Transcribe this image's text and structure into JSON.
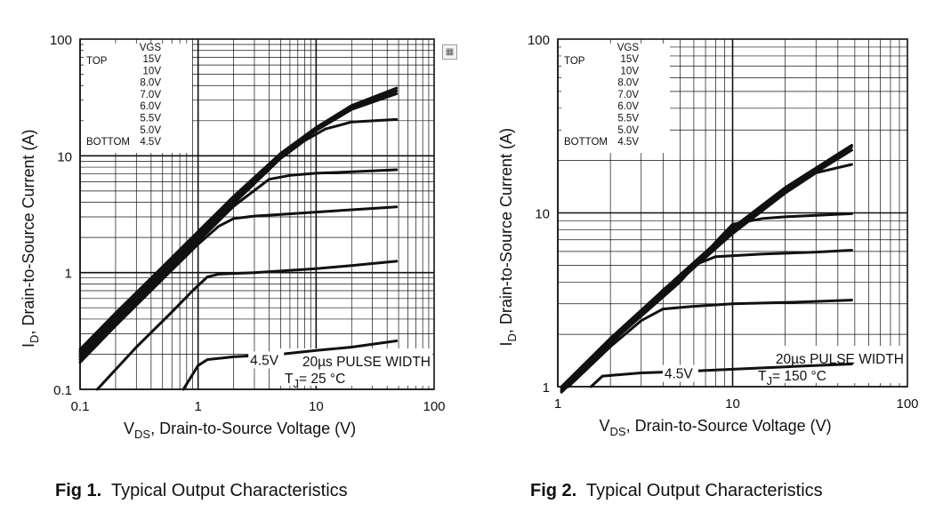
{
  "chart_data": [
    {
      "type": "line",
      "caption_num": "Fig 1.",
      "caption_text": "Typical Output Characteristics",
      "xlabel_main": "V",
      "xlabel_sub": "DS",
      "xlabel_rest": ", Drain-to-Source Voltage (V)",
      "ylabel_main": "I",
      "ylabel_sub": "D",
      "ylabel_rest": ",  Drain-to-Source Current (A)",
      "x_scale": "log",
      "y_scale": "log",
      "xlim": [
        0.1,
        100
      ],
      "ylim": [
        0.1,
        100
      ],
      "x_ticks": [
        "0.1",
        "1",
        "10",
        "100"
      ],
      "y_ticks": [
        "0.1",
        "1",
        "10",
        "100"
      ],
      "grid": true,
      "legend_title": "VGS",
      "legend_top": "TOP",
      "legend_bottom": "BOTTOM",
      "legend_entries": [
        "15V",
        "10V",
        "8.0V",
        "7.0V",
        "6.0V",
        "5.5V",
        "5.0V",
        "4.5V"
      ],
      "annotations": {
        "vgs_label": "4.5V",
        "pulse": "20µs PULSE WIDTH",
        "tj_main": "T",
        "tj_sub": "J",
        "tj_rest": "= 25 °C"
      },
      "series": [
        {
          "name": "15V",
          "x": [
            0.1,
            0.2,
            0.5,
            1,
            2,
            5,
            10,
            20,
            48
          ],
          "y": [
            0.22,
            0.45,
            1.12,
            2.25,
            4.5,
            10.5,
            17.5,
            27,
            38
          ]
        },
        {
          "name": "10V",
          "x": [
            0.1,
            0.2,
            0.5,
            1,
            2,
            5,
            10,
            20,
            48
          ],
          "y": [
            0.21,
            0.43,
            1.08,
            2.15,
            4.3,
            10.2,
            17,
            26,
            36
          ]
        },
        {
          "name": "8.0V",
          "x": [
            0.1,
            0.2,
            0.5,
            1,
            2,
            5,
            10,
            20,
            48
          ],
          "y": [
            0.2,
            0.41,
            1.03,
            2.05,
            4.1,
            9.9,
            16.5,
            25,
            34
          ]
        },
        {
          "name": "7.0V",
          "x": [
            0.1,
            0.2,
            0.5,
            1,
            2,
            5,
            8,
            12,
            20,
            48
          ],
          "y": [
            0.19,
            0.39,
            0.98,
            1.95,
            3.9,
            9.5,
            13.5,
            17,
            19.5,
            20.5
          ]
        },
        {
          "name": "6.0V",
          "x": [
            0.1,
            0.2,
            0.5,
            1,
            2,
            4,
            6,
            10,
            20,
            48
          ],
          "y": [
            0.18,
            0.37,
            0.92,
            1.85,
            3.7,
            6.3,
            6.8,
            7.1,
            7.3,
            7.6
          ]
        },
        {
          "name": "5.5V",
          "x": [
            0.1,
            0.2,
            0.5,
            1,
            1.5,
            2,
            3,
            5,
            10,
            20,
            48
          ],
          "y": [
            0.17,
            0.35,
            0.88,
            1.75,
            2.5,
            2.9,
            3.05,
            3.15,
            3.3,
            3.45,
            3.65
          ]
        },
        {
          "name": "5.0V",
          "x": [
            0.14,
            0.3,
            0.6,
            0.9,
            1.2,
            1.5,
            3,
            10,
            20,
            48
          ],
          "y": [
            0.1,
            0.23,
            0.46,
            0.7,
            0.92,
            0.97,
            1.0,
            1.08,
            1.15,
            1.25
          ]
        },
        {
          "name": "4.5V",
          "x": [
            0.75,
            1.0,
            1.2,
            2,
            5,
            10,
            20,
            48
          ],
          "y": [
            0.1,
            0.16,
            0.18,
            0.19,
            0.2,
            0.215,
            0.23,
            0.26
          ]
        }
      ]
    },
    {
      "type": "line",
      "caption_num": "Fig 2.",
      "caption_text": "Typical Output Characteristics",
      "xlabel_main": "V",
      "xlabel_sub": "DS",
      "xlabel_rest": ", Drain-to-Source Voltage (V)",
      "ylabel_main": "I",
      "ylabel_sub": "D",
      "ylabel_rest": ",  Drain-to-Source Current (A)",
      "x_scale": "log",
      "y_scale": "log",
      "xlim": [
        1,
        100
      ],
      "ylim": [
        1,
        100
      ],
      "x_ticks": [
        "1",
        "10",
        "100"
      ],
      "y_ticks": [
        "1",
        "10",
        "100"
      ],
      "grid": true,
      "legend_title": "VGS",
      "legend_top": "TOP",
      "legend_bottom": "BOTTOM",
      "legend_entries": [
        "15V",
        "10V",
        "8.0V",
        "7.0V",
        "6.0V",
        "5.5V",
        "5.0V",
        "4.5V"
      ],
      "annotations": {
        "vgs_label": "4.5V",
        "pulse": "20µs PULSE WIDTH",
        "tj_main": "T",
        "tj_sub": "J",
        "tj_rest": "= 150 °C"
      },
      "series": [
        {
          "name": "15V",
          "x": [
            1.05,
            2,
            5,
            10,
            20,
            48
          ],
          "y": [
            1.0,
            1.9,
            4.4,
            8.2,
            14,
            24.5
          ]
        },
        {
          "name": "10V",
          "x": [
            1.05,
            2,
            5,
            10,
            20,
            48
          ],
          "y": [
            0.98,
            1.86,
            4.3,
            8.0,
            13.7,
            24
          ]
        },
        {
          "name": "8.0V",
          "x": [
            1.05,
            2,
            5,
            10,
            20,
            48
          ],
          "y": [
            0.96,
            1.83,
            4.2,
            7.8,
            13.3,
            23
          ]
        },
        {
          "name": "7.0V",
          "x": [
            1.05,
            2,
            5,
            10,
            20,
            30,
            48
          ],
          "y": [
            0.95,
            1.8,
            4.1,
            7.6,
            13,
            17,
            19
          ]
        },
        {
          "name": "6.0V",
          "x": [
            1.05,
            2,
            5,
            8,
            10,
            15,
            20,
            48
          ],
          "y": [
            0.94,
            1.78,
            4.0,
            6.8,
            8.6,
            9.3,
            9.5,
            9.9
          ]
        },
        {
          "name": "5.5V",
          "x": [
            1.05,
            2,
            4,
            6,
            8,
            15,
            30,
            48
          ],
          "y": [
            0.93,
            1.75,
            3.6,
            5.0,
            5.6,
            5.8,
            5.95,
            6.1
          ]
        },
        {
          "name": "5.0V",
          "x": [
            1.15,
            2,
            3,
            4,
            6,
            10,
            20,
            48
          ],
          "y": [
            1.0,
            1.7,
            2.4,
            2.8,
            2.9,
            3.0,
            3.05,
            3.15
          ]
        },
        {
          "name": "4.5V",
          "x": [
            1.55,
            1.8,
            3,
            5,
            10,
            20,
            48
          ],
          "y": [
            1.0,
            1.15,
            1.2,
            1.22,
            1.26,
            1.3,
            1.35
          ]
        }
      ]
    }
  ]
}
